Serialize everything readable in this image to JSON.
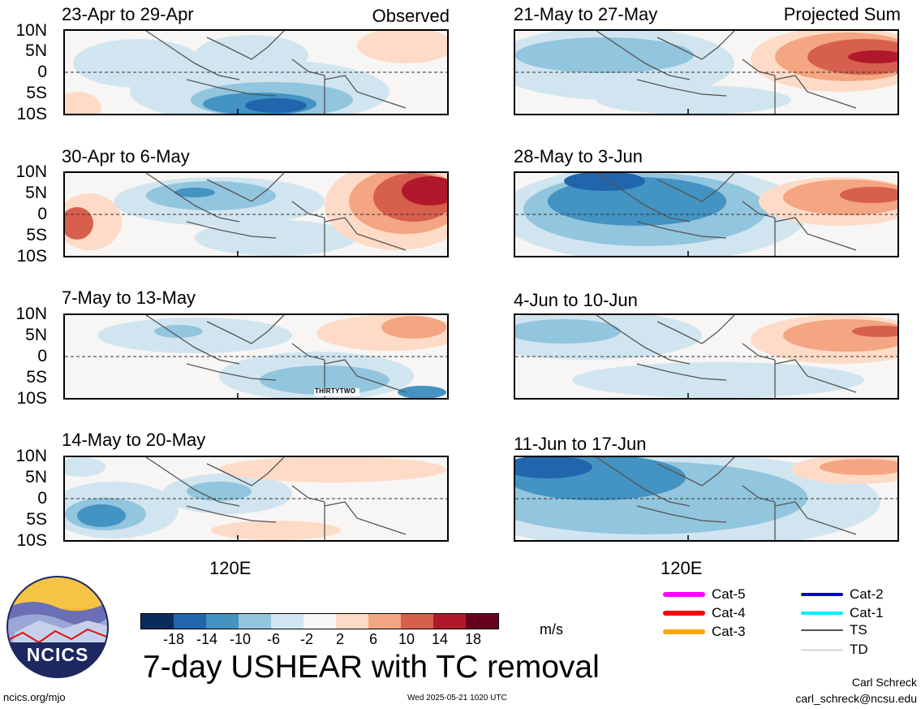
{
  "labels": {
    "observed": "Observed",
    "projected": "Projected Sum",
    "x_tick": "120E"
  },
  "lat_ticks": [
    "10N",
    "5N",
    "0",
    "5S",
    "10S"
  ],
  "panels": {
    "p1": {
      "title": "23-Apr to 29-Apr"
    },
    "p2": {
      "title": "30-Apr to 6-May"
    },
    "p3": {
      "title": "7-May to 13-May",
      "annotation": "THIRTYTWO"
    },
    "p4": {
      "title": "14-May to 20-May"
    },
    "p5": {
      "title": "21-May to 27-May"
    },
    "p6": {
      "title": "28-May to 3-Jun"
    },
    "p7": {
      "title": "4-Jun to 10-Jun"
    },
    "p8": {
      "title": "11-Jun to 17-Jun"
    }
  },
  "colorbar": {
    "colors": [
      "#0a2c5a",
      "#2166ac",
      "#4393c3",
      "#92c5de",
      "#d1e5f0",
      "#f7f7f7",
      "#fddbc7",
      "#f4a582",
      "#d6604d",
      "#b2182b",
      "#67001f"
    ],
    "ticks": [
      "-18",
      "-14",
      "-10",
      "-6",
      "-2",
      "2",
      "6",
      "10",
      "14",
      "18"
    ],
    "units": "m/s"
  },
  "title": "7-day USHEAR with TC removal",
  "footer": {
    "url": "ncics.org/mjo",
    "timestamp": "Wed 2025-05-21 1020 UTC",
    "author": "Carl Schreck",
    "email": "carl_schreck@ncsu.edu"
  },
  "logo": {
    "text": "NCICS"
  },
  "legend": [
    {
      "label": "Cat-5",
      "color": "#ff00ff"
    },
    {
      "label": "Cat-4",
      "color": "#ff0000"
    },
    {
      "label": "Cat-3",
      "color": "#ffa500"
    },
    {
      "label": "Cat-2",
      "color": "#0000cc"
    },
    {
      "label": "Cat-1",
      "color": "#00eeff"
    },
    {
      "label": "TS",
      "color": "#555555"
    },
    {
      "label": "TD",
      "color": "#bbbbbb"
    }
  ]
}
